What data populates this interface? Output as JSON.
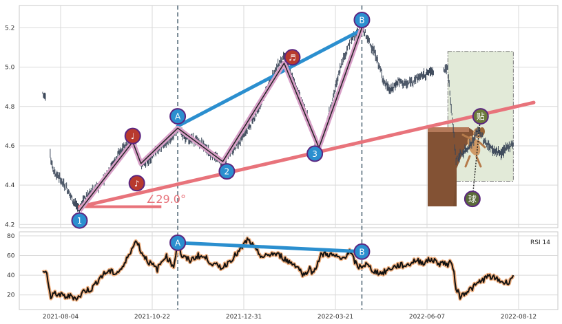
{
  "chart_data": [
    {
      "type": "candlestick",
      "panel": "price",
      "ylim": [
        4.18,
        5.24
      ],
      "yticks": [
        "4.2",
        "4.4",
        "4.6",
        "4.8",
        "5.0",
        "5.2"
      ],
      "x_labels": [
        "2021-08-04",
        "2021-10-22",
        "2021-12-31",
        "2022-03-21",
        "2022-06-07",
        "2022-08-12"
      ],
      "grid": true,
      "price_path": [
        [
          0,
          4.87
        ],
        [
          2,
          4.84
        ],
        [
          4,
          4.52
        ],
        [
          6,
          4.46
        ],
        [
          8,
          4.44
        ],
        [
          10,
          4.41
        ],
        [
          12,
          4.38
        ],
        [
          14,
          4.34
        ],
        [
          16,
          4.3
        ],
        [
          18,
          4.28
        ],
        [
          20,
          4.33
        ],
        [
          22,
          4.35
        ],
        [
          24,
          4.37
        ],
        [
          28,
          4.4
        ],
        [
          32,
          4.47
        ],
        [
          36,
          4.54
        ],
        [
          40,
          4.6
        ],
        [
          44,
          4.63
        ],
        [
          46,
          4.58
        ],
        [
          48,
          4.5
        ],
        [
          52,
          4.53
        ],
        [
          56,
          4.58
        ],
        [
          60,
          4.61
        ],
        [
          64,
          4.65
        ],
        [
          66,
          4.69
        ],
        [
          70,
          4.64
        ],
        [
          74,
          4.63
        ],
        [
          78,
          4.61
        ],
        [
          82,
          4.56
        ],
        [
          86,
          4.53
        ],
        [
          88,
          4.51
        ],
        [
          92,
          4.57
        ],
        [
          96,
          4.62
        ],
        [
          100,
          4.68
        ],
        [
          104,
          4.76
        ],
        [
          108,
          4.85
        ],
        [
          112,
          4.95
        ],
        [
          116,
          5.03
        ],
        [
          118,
          5.05
        ],
        [
          122,
          4.95
        ],
        [
          126,
          4.84
        ],
        [
          130,
          4.73
        ],
        [
          133,
          4.62
        ],
        [
          135,
          4.59
        ],
        [
          138,
          4.68
        ],
        [
          142,
          4.85
        ],
        [
          146,
          5.02
        ],
        [
          150,
          5.12
        ],
        [
          153,
          5.17
        ],
        [
          156,
          5.2
        ],
        [
          158,
          5.16
        ],
        [
          161,
          5.1
        ],
        [
          164,
          5.02
        ],
        [
          167,
          4.92
        ],
        [
          170,
          4.88
        ],
        [
          174,
          4.93
        ],
        [
          178,
          4.91
        ],
        [
          182,
          4.94
        ],
        [
          186,
          4.96
        ],
        [
          190,
          4.98
        ],
        [
          194,
          5.0
        ],
        [
          196,
          4.99
        ],
        [
          198,
          4.99
        ],
        [
          202,
          4.53
        ],
        [
          206,
          4.57
        ],
        [
          210,
          4.62
        ],
        [
          213,
          4.68
        ],
        [
          216,
          4.62
        ],
        [
          220,
          4.58
        ],
        [
          224,
          4.56
        ],
        [
          228,
          4.6
        ],
        [
          230,
          4.61
        ]
      ],
      "gap_range": [
        191,
        196
      ],
      "lows": {
        "2": 4.51,
        "3": 4.6
      },
      "trendlines": [
        {
          "from": [
            18,
            4.29
          ],
          "to": [
            240,
            4.82
          ],
          "color": "#e8737b",
          "label": "∠29.0°"
        },
        {
          "from": [
            66,
            4.7
          ],
          "to": [
            156,
            5.19
          ],
          "color": "#2b8fcf"
        }
      ],
      "zigzag": [
        [
          18,
          4.27
        ],
        [
          44,
          4.62
        ],
        [
          48,
          4.51
        ],
        [
          66,
          4.69
        ],
        [
          88,
          4.52
        ],
        [
          118,
          5.02
        ],
        [
          135,
          4.59
        ],
        [
          156,
          5.2
        ]
      ],
      "markers": [
        {
          "label": "1",
          "x": 18,
          "y": 4.22,
          "color": "#2b8fcf"
        },
        {
          "label": "2",
          "x": 90,
          "y": 4.47,
          "color": "#2b8fcf"
        },
        {
          "label": "3",
          "x": 133,
          "y": 4.56,
          "color": "#2b8fcf"
        },
        {
          "label": "A",
          "x": 66,
          "y": 4.75,
          "color": "#2b8fcf"
        },
        {
          "label": "B",
          "x": 156,
          "y": 5.24,
          "color": "#2b8fcf"
        },
        {
          "label": "♩",
          "x": 44,
          "y": 4.65,
          "color": "#b83a2e"
        },
        {
          "label": "♪",
          "x": 46,
          "y": 4.41,
          "color": "#b83a2e"
        },
        {
          "label": "♬",
          "x": 122,
          "y": 5.05,
          "color": "#b83a2e"
        },
        {
          "label": "贴",
          "x": 214,
          "y": 4.75,
          "color": "#6b7a3a"
        },
        {
          "label": "球",
          "x": 210,
          "y": 4.33,
          "color": "#5a6a3a"
        }
      ],
      "vlines": [
        {
          "x": 66,
          "label": "A"
        },
        {
          "x": 156,
          "label": "B"
        }
      ],
      "shaded_region": {
        "x0": 198,
        "x1": 230,
        "y0": 4.42,
        "y1": 5.08
      }
    },
    {
      "type": "line",
      "panel": "indicator",
      "label": "RSI 14",
      "ylim": [
        10,
        82
      ],
      "yticks": [
        "20",
        "40",
        "60",
        "80"
      ],
      "x": [
        0,
        2,
        4,
        6,
        8,
        10,
        12,
        14,
        16,
        18,
        20,
        24,
        28,
        32,
        36,
        40,
        42,
        44,
        46,
        48,
        52,
        56,
        60,
        64,
        66,
        68,
        72,
        76,
        80,
        84,
        88,
        92,
        96,
        100,
        102,
        104,
        108,
        112,
        116,
        118,
        120,
        124,
        128,
        130,
        132,
        134,
        136,
        138,
        142,
        146,
        150,
        154,
        158,
        162,
        166,
        170,
        174,
        178,
        182,
        186,
        190,
        194,
        196,
        198,
        200,
        202,
        204,
        206,
        210,
        214,
        218,
        222,
        226,
        228,
        230
      ],
      "values": [
        44,
        42,
        16,
        22,
        20,
        19,
        18,
        19,
        17,
        18,
        24,
        26,
        38,
        44,
        42,
        50,
        62,
        68,
        76,
        64,
        53,
        46,
        60,
        49,
        74,
        59,
        55,
        60,
        57,
        50,
        48,
        56,
        64,
        76,
        72,
        65,
        58,
        62,
        60,
        57,
        54,
        50,
        39,
        48,
        42,
        51,
        60,
        62,
        60,
        56,
        64,
        48,
        51,
        44,
        42,
        47,
        50,
        50,
        55,
        53,
        56,
        52,
        53,
        50,
        54,
        28,
        18,
        22,
        27,
        34,
        39,
        36,
        32,
        34,
        40
      ],
      "trendline": {
        "from": [
          66,
          73
        ],
        "to": [
          156,
          64
        ],
        "color": "#2b8fcf"
      },
      "markers": [
        {
          "label": "A",
          "x": 66,
          "y": 73
        },
        {
          "label": "B",
          "x": 156,
          "y": 64
        }
      ]
    }
  ],
  "colors": {
    "candle": "#3a4658",
    "grid": "#d9d9d9",
    "vline": "#4a6070",
    "pink_line": "#e8737b",
    "blue_line": "#2b8fcf",
    "zigzag_outer": "#d8a0c8",
    "zigzag_inner": "#222222",
    "rsi_outer": "#f0b080",
    "rsi_inner": "#111111",
    "shaded": "#e2ead8"
  }
}
